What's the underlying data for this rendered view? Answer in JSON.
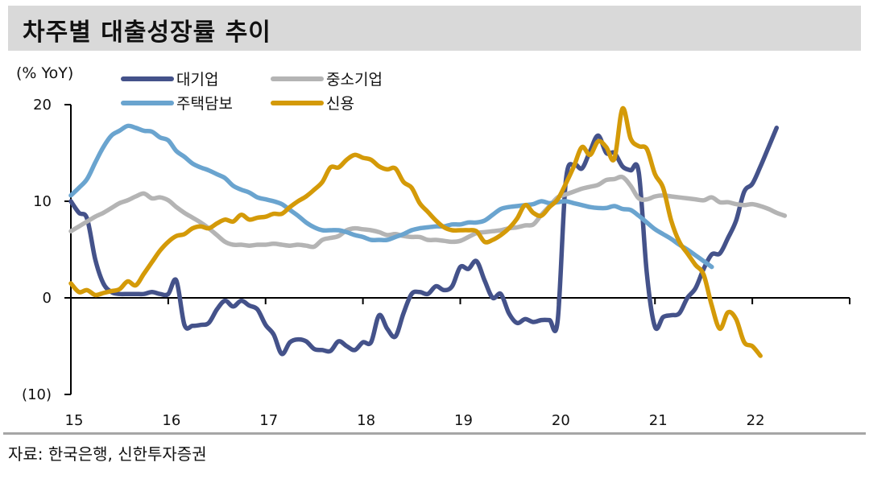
{
  "header": {
    "title": "차주별 대출성장률 추이"
  },
  "footer": {
    "source": "자료: 한국은행, 신한투자증권"
  },
  "chart_data": {
    "type": "line",
    "title": "차주별 대출성장률 추이",
    "ylabel": "(% YoY)",
    "xlabel": "",
    "ylim": [
      -10,
      20
    ],
    "yticks": [
      20,
      10,
      0,
      -10
    ],
    "ytick_labels": [
      "20",
      "10",
      "0",
      "(10)"
    ],
    "x_start": "2015-01",
    "x_frequency": "monthly",
    "xlim_months": [
      0,
      96
    ],
    "xticks_months": [
      0,
      12,
      24,
      36,
      48,
      60,
      72,
      84,
      96
    ],
    "xtick_labels": [
      "15",
      "16",
      "17",
      "18",
      "19",
      "20",
      "21",
      "22"
    ],
    "grid": false,
    "legend": "top",
    "series": [
      {
        "name": "대기업",
        "color": "#44528a",
        "values": [
          10.0,
          8.8,
          8.2,
          4.0,
          1.5,
          0.6,
          0.4,
          0.4,
          0.4,
          0.4,
          0.6,
          0.4,
          0.4,
          1.8,
          -2.8,
          -2.9,
          -2.8,
          -2.6,
          -1.2,
          -0.3,
          -0.9,
          -0.3,
          -0.8,
          -1.2,
          -2.8,
          -3.8,
          -5.8,
          -4.6,
          -4.3,
          -4.5,
          -5.3,
          -5.4,
          -5.5,
          -4.5,
          -5.0,
          -5.4,
          -4.6,
          -4.6,
          -1.8,
          -3.2,
          -4.0,
          -1.6,
          0.4,
          0.6,
          0.4,
          1.2,
          0.8,
          1.2,
          3.2,
          3.0,
          3.8,
          1.8,
          0.0,
          0.4,
          -1.6,
          -2.6,
          -2.2,
          -2.5,
          -2.3,
          -2.3,
          -2.4,
          12.0,
          13.8,
          13.4,
          15.2,
          16.8,
          15.0,
          15.0,
          13.6,
          13.2,
          13.0,
          2.5,
          -3.0,
          -2.0,
          -1.8,
          -1.6,
          0.0,
          1.0,
          3.0,
          4.5,
          4.6,
          6.2,
          8.0,
          11.0,
          11.8,
          13.6,
          15.6,
          17.6
        ]
      },
      {
        "name": "중소기업",
        "color": "#b4b4b4",
        "values": [
          6.9,
          7.4,
          7.9,
          8.4,
          8.8,
          9.3,
          9.8,
          10.1,
          10.5,
          10.8,
          10.3,
          10.4,
          10.1,
          9.4,
          8.8,
          8.3,
          7.8,
          7.2,
          6.5,
          5.8,
          5.5,
          5.5,
          5.4,
          5.5,
          5.5,
          5.6,
          5.5,
          5.4,
          5.5,
          5.4,
          5.3,
          6.0,
          6.2,
          6.4,
          7.0,
          7.2,
          7.1,
          7.0,
          6.8,
          6.5,
          6.6,
          6.4,
          6.3,
          6.3,
          6.0,
          6.0,
          5.9,
          5.8,
          5.9,
          6.3,
          6.7,
          6.8,
          6.9,
          7.0,
          7.2,
          7.3,
          7.5,
          7.6,
          8.6,
          9.5,
          10.4,
          10.7,
          11.0,
          11.3,
          11.5,
          11.7,
          12.2,
          12.3,
          12.5,
          11.6,
          10.3,
          10.2,
          10.5,
          10.6,
          10.5,
          10.4,
          10.3,
          10.2,
          10.1,
          10.4,
          9.9,
          9.9,
          9.7,
          9.6,
          9.7,
          9.5,
          9.2,
          8.8,
          8.5
        ]
      },
      {
        "name": "주택담보",
        "color": "#6aa4cf",
        "values": [
          10.6,
          11.4,
          12.3,
          14.0,
          15.6,
          16.8,
          17.3,
          17.8,
          17.6,
          17.3,
          17.2,
          16.6,
          16.3,
          15.2,
          14.6,
          13.9,
          13.5,
          13.2,
          12.8,
          12.4,
          11.6,
          11.2,
          10.9,
          10.4,
          10.2,
          10.0,
          9.7,
          9.1,
          8.5,
          7.8,
          7.3,
          7.0,
          7.0,
          7.0,
          6.8,
          6.5,
          6.3,
          6.0,
          6.0,
          6.0,
          6.3,
          6.6,
          7.0,
          7.2,
          7.3,
          7.4,
          7.4,
          7.6,
          7.6,
          7.8,
          7.8,
          8.0,
          8.6,
          9.2,
          9.4,
          9.5,
          9.6,
          9.7,
          10.0,
          9.8,
          9.9,
          10.0,
          9.8,
          9.6,
          9.4,
          9.3,
          9.3,
          9.5,
          9.2,
          9.1,
          8.5,
          7.8,
          7.1,
          6.6,
          6.1,
          5.5,
          5.0,
          4.4,
          3.8,
          3.2
        ]
      },
      {
        "name": "신용",
        "color": "#d49a08",
        "values": [
          1.5,
          0.6,
          0.8,
          0.3,
          0.5,
          0.7,
          0.9,
          1.7,
          1.3,
          2.5,
          3.7,
          4.9,
          5.8,
          6.4,
          6.6,
          7.2,
          7.4,
          7.2,
          7.7,
          8.1,
          7.9,
          8.6,
          8.1,
          8.3,
          8.4,
          8.7,
          8.7,
          9.4,
          10.0,
          10.5,
          11.2,
          12.0,
          13.5,
          13.5,
          14.3,
          14.8,
          14.5,
          14.3,
          13.6,
          13.3,
          13.4,
          12.0,
          11.4,
          9.8,
          8.9,
          8.0,
          7.3,
          7.0,
          7.0,
          7.0,
          6.9,
          5.8,
          6.0,
          6.5,
          7.2,
          8.2,
          9.6,
          8.8,
          8.5,
          9.4,
          10.2,
          11.8,
          13.6,
          15.6,
          14.8,
          16.2,
          15.6,
          14.4,
          19.6,
          16.5,
          15.7,
          15.4,
          12.8,
          11.4,
          8.0,
          5.8,
          4.6,
          3.4,
          2.4,
          -0.8,
          -3.2,
          -1.5,
          -2.2,
          -4.6,
          -5.0,
          -6.0
        ]
      }
    ]
  }
}
